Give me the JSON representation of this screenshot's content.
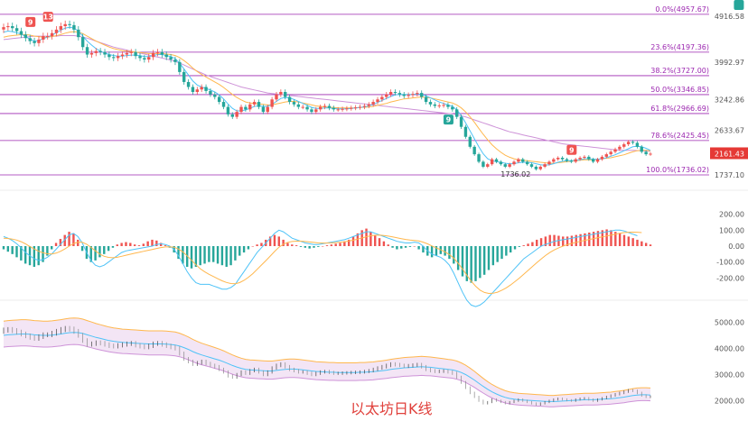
{
  "caption": "以太坊日K线",
  "colors": {
    "up": "#ef5350",
    "down": "#26a69a",
    "fib_line": "#9c27b0",
    "ma_short": "#4fc3f7",
    "ma_mid": "#ffb74d",
    "ma_long": "#ce93d8",
    "band_fill": "#f3e5f5",
    "last_price_bg": "#e53935"
  },
  "chart_data": [
    {
      "type": "candlestick",
      "panel": "price",
      "y_scale": "linear",
      "ylim": [
        1700,
        5100
      ],
      "price_ticks": [
        "4916.58",
        "3992.97",
        "3242.86",
        "2633.67",
        "1737.10"
      ],
      "price_tick_values": [
        4916.58,
        3992.97,
        3242.86,
        2633.67,
        1737.1
      ],
      "last_price": "2161.43",
      "last_price_value": 2161.43,
      "low_annotation": "1736.02",
      "low_value": 1736.02,
      "fib_levels": [
        {
          "label": "0.0%(4957.67)",
          "value": 4957.67
        },
        {
          "label": "23.6%(4197.36)",
          "value": 4197.36
        },
        {
          "label": "38.2%(3727.00)",
          "value": 3727.0
        },
        {
          "label": "50.0%(3346.85)",
          "value": 3346.85
        },
        {
          "label": "61.8%(2966.69)",
          "value": 2966.69
        },
        {
          "label": "78.6%(2425.45)",
          "value": 2425.45
        },
        {
          "label": "100.0%(1736.02)",
          "value": 1736.02
        }
      ],
      "signals": [
        {
          "text": "9",
          "kind": "down",
          "index": 6
        },
        {
          "text": "13",
          "kind": "down",
          "index": 10
        },
        {
          "text": "9",
          "kind": "up",
          "index": 101
        },
        {
          "text": "9",
          "kind": "down",
          "index": 129
        },
        {
          "text": "9",
          "kind": "up",
          "index": 167
        }
      ],
      "closes": [
        4700,
        4720,
        4680,
        4620,
        4550,
        4480,
        4420,
        4380,
        4450,
        4520,
        4520,
        4580,
        4650,
        4720,
        4760,
        4740,
        4650,
        4500,
        4300,
        4150,
        4180,
        4220,
        4200,
        4150,
        4100,
        4080,
        4120,
        4150,
        4180,
        4200,
        4120,
        4080,
        4050,
        4100,
        4180,
        4200,
        4150,
        4100,
        4050,
        4000,
        3800,
        3600,
        3500,
        3400,
        3450,
        3500,
        3420,
        3350,
        3300,
        3200,
        3100,
        2950,
        2900,
        3000,
        3100,
        3050,
        3150,
        3200,
        3100,
        3000,
        3100,
        3250,
        3350,
        3400,
        3300,
        3200,
        3150,
        3100,
        3100,
        3050,
        3000,
        3050,
        3100,
        3120,
        3080,
        3050,
        3050,
        3060,
        3070,
        3080,
        3090,
        3100,
        3120,
        3150,
        3200,
        3250,
        3300,
        3350,
        3400,
        3380,
        3350,
        3320,
        3340,
        3360,
        3380,
        3300,
        3200,
        3150,
        3120,
        3130,
        3140,
        3100,
        3050,
        2900,
        2700,
        2500,
        2300,
        2150,
        2000,
        1900,
        1950,
        2050,
        2000,
        1950,
        1900,
        1950,
        2000,
        2050,
        2000,
        1950,
        1900,
        1850,
        1900,
        1950,
        2000,
        2050,
        2080,
        2050,
        2020,
        2000,
        2050,
        2080,
        2100,
        2050,
        2000,
        2050,
        2100,
        2150,
        2200,
        2250,
        2300,
        2350,
        2400,
        2380,
        2300,
        2200,
        2150,
        2161.43
      ],
      "ma_short": [
        4600,
        4620,
        4610,
        4590,
        4560,
        4510,
        4460,
        4420,
        4430,
        4470,
        4500,
        4540,
        4590,
        4640,
        4680,
        4700,
        4680,
        4620,
        4520,
        4420,
        4340,
        4270,
        4220,
        4180,
        4150,
        4130,
        4120,
        4120,
        4130,
        4140,
        4140,
        4130,
        4110,
        4110,
        4130,
        4150,
        4150,
        4130,
        4110,
        4070,
        3980,
        3860,
        3740,
        3620,
        3540,
        3500,
        3470,
        3440,
        3400,
        3340,
        3260,
        3160,
        3070,
        3020,
        3020,
        3040,
        3070,
        3110,
        3120,
        3110,
        3110,
        3150,
        3210,
        3270,
        3290,
        3280,
        3250,
        3210,
        3170,
        3130,
        3090,
        3070,
        3070,
        3080,
        3080,
        3070,
        3060,
        3060,
        3060,
        3070,
        3080,
        3090,
        3100,
        3120,
        3150,
        3190,
        3230,
        3270,
        3310,
        3340,
        3350,
        3350,
        3350,
        3350,
        3360,
        3350,
        3320,
        3280,
        3240,
        3200,
        3170,
        3140,
        3110,
        3040,
        2930,
        2780,
        2620,
        2460,
        2300,
        2160,
        2060,
        2020,
        2000,
        1990,
        1970,
        1960,
        1960,
        1980,
        1990,
        1990,
        1980,
        1960,
        1940,
        1930,
        1940,
        1960,
        1990,
        2010,
        2020,
        2020,
        2030,
        2040,
        2060,
        2060,
        2050,
        2050,
        2060,
        2080,
        2110,
        2140,
        2180,
        2220,
        2260,
        2300,
        2310,
        2300,
        2270,
        2230
      ],
      "ma_mid": [
        4500,
        4520,
        4530,
        4540,
        4550,
        4550,
        4540,
        4520,
        4510,
        4500,
        4500,
        4510,
        4530,
        4550,
        4580,
        4600,
        4610,
        4600,
        4570,
        4520,
        4470,
        4420,
        4380,
        4340,
        4300,
        4270,
        4250,
        4230,
        4220,
        4210,
        4200,
        4190,
        4180,
        4170,
        4170,
        4170,
        4170,
        4160,
        4150,
        4130,
        4090,
        4030,
        3960,
        3880,
        3810,
        3750,
        3700,
        3650,
        3600,
        3550,
        3490,
        3420,
        3350,
        3290,
        3240,
        3200,
        3180,
        3170,
        3160,
        3150,
        3140,
        3140,
        3160,
        3180,
        3200,
        3210,
        3210,
        3200,
        3180,
        3160,
        3140,
        3120,
        3110,
        3100,
        3090,
        3090,
        3080,
        3080,
        3080,
        3080,
        3080,
        3090,
        3090,
        3100,
        3110,
        3130,
        3150,
        3170,
        3200,
        3220,
        3240,
        3260,
        3270,
        3280,
        3290,
        3300,
        3290,
        3280,
        3260,
        3240,
        3220,
        3200,
        3180,
        3140,
        3080,
        3000,
        2900,
        2790,
        2670,
        2550,
        2440,
        2340,
        2260,
        2190,
        2130,
        2090,
        2060,
        2040,
        2030,
        2020,
        2010,
        2000,
        1990,
        1980,
        1970,
        1970,
        1980,
        1990,
        2000,
        2010,
        2020,
        2030,
        2040,
        2040,
        2040,
        2050,
        2060,
        2070,
        2080,
        2100,
        2120,
        2140,
        2170,
        2200,
        2220,
        2230,
        2230,
        2220
      ],
      "ma_long": [
        4450,
        4460,
        4470,
        4480,
        4490,
        4500,
        4510,
        4520,
        4520,
        4520,
        4520,
        4520,
        4520,
        4530,
        4530,
        4530,
        4530,
        4520,
        4500,
        4480,
        4450,
        4420,
        4390,
        4360,
        4330,
        4300,
        4280,
        4260,
        4240,
        4220,
        4200,
        4180,
        4160,
        4140,
        4120,
        4100,
        4080,
        4060,
        4040,
        4010,
        3980,
        3940,
        3900,
        3860,
        3820,
        3780,
        3740,
        3710,
        3680,
        3650,
        3620,
        3590,
        3560,
        3530,
        3500,
        3480,
        3460,
        3440,
        3420,
        3400,
        3380,
        3370,
        3360,
        3350,
        3340,
        3330,
        3320,
        3310,
        3300,
        3290,
        3280,
        3270,
        3260,
        3250,
        3240,
        3230,
        3220,
        3210,
        3200,
        3190,
        3180,
        3170,
        3160,
        3150,
        3140,
        3130,
        3120,
        3110,
        3100,
        3090,
        3080,
        3070,
        3060,
        3050,
        3040,
        3030,
        3020,
        3010,
        3000,
        2990,
        2980,
        2970,
        2960,
        2940,
        2920,
        2900,
        2870,
        2840,
        2810,
        2780,
        2750,
        2720,
        2690,
        2660,
        2630,
        2600,
        2580,
        2560,
        2540,
        2520,
        2500,
        2480,
        2460,
        2440,
        2420,
        2400,
        2380,
        2360,
        2350,
        2340,
        2330,
        2320,
        2310,
        2300,
        2290,
        2280,
        2270,
        2260,
        2250,
        2240,
        2230,
        2230,
        2230,
        2230,
        2225,
        2220,
        2215,
        2210
      ]
    },
    {
      "type": "bar",
      "panel": "macd",
      "ticks": [
        "200.00",
        "100.00",
        "0.00",
        "-100.00",
        "-200.00"
      ],
      "tick_values": [
        200,
        100,
        0,
        -100,
        -200
      ],
      "ylim": [
        -300,
        300
      ],
      "histogram": [
        -20,
        -35,
        -50,
        -70,
        -90,
        -110,
        -120,
        -130,
        -120,
        -100,
        -60,
        -20,
        20,
        45,
        70,
        90,
        80,
        40,
        -30,
        -80,
        -100,
        -90,
        -70,
        -50,
        -30,
        -10,
        10,
        20,
        25,
        20,
        10,
        5,
        15,
        30,
        40,
        35,
        20,
        5,
        -10,
        -40,
        -80,
        -110,
        -130,
        -140,
        -130,
        -120,
        -110,
        -100,
        -100,
        -110,
        -120,
        -130,
        -120,
        -90,
        -60,
        -40,
        -20,
        0,
        10,
        20,
        40,
        60,
        70,
        60,
        40,
        20,
        10,
        5,
        -5,
        -10,
        -15,
        -10,
        -5,
        0,
        5,
        10,
        15,
        20,
        30,
        40,
        60,
        80,
        100,
        110,
        90,
        70,
        50,
        30,
        10,
        -10,
        -20,
        -15,
        -10,
        -5,
        0,
        -20,
        -40,
        -60,
        -70,
        -60,
        -50,
        -60,
        -80,
        -110,
        -150,
        -190,
        -220,
        -230,
        -220,
        -200,
        -180,
        -150,
        -120,
        -100,
        -80,
        -60,
        -40,
        -20,
        -5,
        5,
        15,
        25,
        40,
        50,
        60,
        70,
        70,
        65,
        60,
        60,
        65,
        70,
        75,
        80,
        85,
        90,
        95,
        100,
        105,
        100,
        90,
        80,
        70,
        60,
        50,
        40,
        30,
        20,
        10
      ],
      "dif": [
        60,
        50,
        35,
        15,
        -10,
        -40,
        -60,
        -80,
        -90,
        -85,
        -70,
        -50,
        -20,
        10,
        40,
        70,
        80,
        60,
        20,
        -40,
        -90,
        -120,
        -130,
        -120,
        -100,
        -80,
        -60,
        -40,
        -30,
        -25,
        -20,
        -15,
        -10,
        -5,
        0,
        10,
        15,
        10,
        0,
        -20,
        -60,
        -110,
        -160,
        -200,
        -230,
        -240,
        -240,
        -240,
        -250,
        -260,
        -270,
        -270,
        -260,
        -240,
        -200,
        -160,
        -120,
        -80,
        -40,
        -10,
        20,
        50,
        80,
        100,
        90,
        70,
        50,
        40,
        30,
        20,
        15,
        10,
        10,
        15,
        20,
        25,
        30,
        35,
        40,
        50,
        60,
        70,
        80,
        90,
        90,
        80,
        70,
        60,
        50,
        40,
        30,
        25,
        20,
        20,
        25,
        20,
        0,
        -30,
        -50,
        -60,
        -70,
        -90,
        -120,
        -170,
        -230,
        -290,
        -340,
        -370,
        -380,
        -370,
        -350,
        -320,
        -290,
        -260,
        -230,
        -200,
        -170,
        -140,
        -110,
        -80,
        -60,
        -40,
        -20,
        0,
        10,
        20,
        30,
        35,
        40,
        45,
        50,
        55,
        60,
        65,
        70,
        75,
        80,
        85,
        90,
        95,
        100,
        100,
        95,
        85,
        75,
        65
      ],
      "dea": [
        50,
        48,
        44,
        38,
        28,
        14,
        -2,
        -18,
        -32,
        -42,
        -48,
        -50,
        -44,
        -33,
        -18,
        0,
        16,
        25,
        24,
        12,
        -8,
        -30,
        -50,
        -64,
        -71,
        -73,
        -70,
        -64,
        -57,
        -51,
        -45,
        -39,
        -33,
        -27,
        -21,
        -15,
        -9,
        -5,
        -4,
        -7,
        -18,
        -36,
        -61,
        -89,
        -117,
        -142,
        -161,
        -177,
        -191,
        -205,
        -218,
        -228,
        -235,
        -236,
        -229,
        -215,
        -196,
        -173,
        -146,
        -119,
        -91,
        -63,
        -34,
        -7,
        12,
        24,
        29,
        31,
        31,
        29,
        26,
        23,
        20,
        19,
        19,
        20,
        22,
        24,
        27,
        32,
        37,
        44,
        51,
        59,
        65,
        68,
        69,
        67,
        63,
        58,
        52,
        47,
        42,
        38,
        35,
        32,
        25,
        14,
        1,
        -11,
        -23,
        -36,
        -53,
        -76,
        -107,
        -144,
        -183,
        -220,
        -252,
        -276,
        -291,
        -297,
        -296,
        -289,
        -277,
        -262,
        -244,
        -223,
        -201,
        -177,
        -153,
        -128,
        -104,
        -81,
        -59,
        -40,
        -24,
        -11,
        0,
        9,
        17,
        24,
        30,
        36,
        42,
        47,
        53,
        58,
        64,
        69,
        75,
        81,
        85,
        87,
        88,
        87,
        85
      ],
      "series_names": []
    },
    {
      "type": "line",
      "panel": "bands",
      "ticks": [
        "5000.00",
        "4000.00",
        "3000.00",
        "2000.00"
      ],
      "tick_values": [
        5000,
        4000,
        3000,
        2000
      ],
      "ylim": [
        1400,
        5600
      ]
    }
  ]
}
